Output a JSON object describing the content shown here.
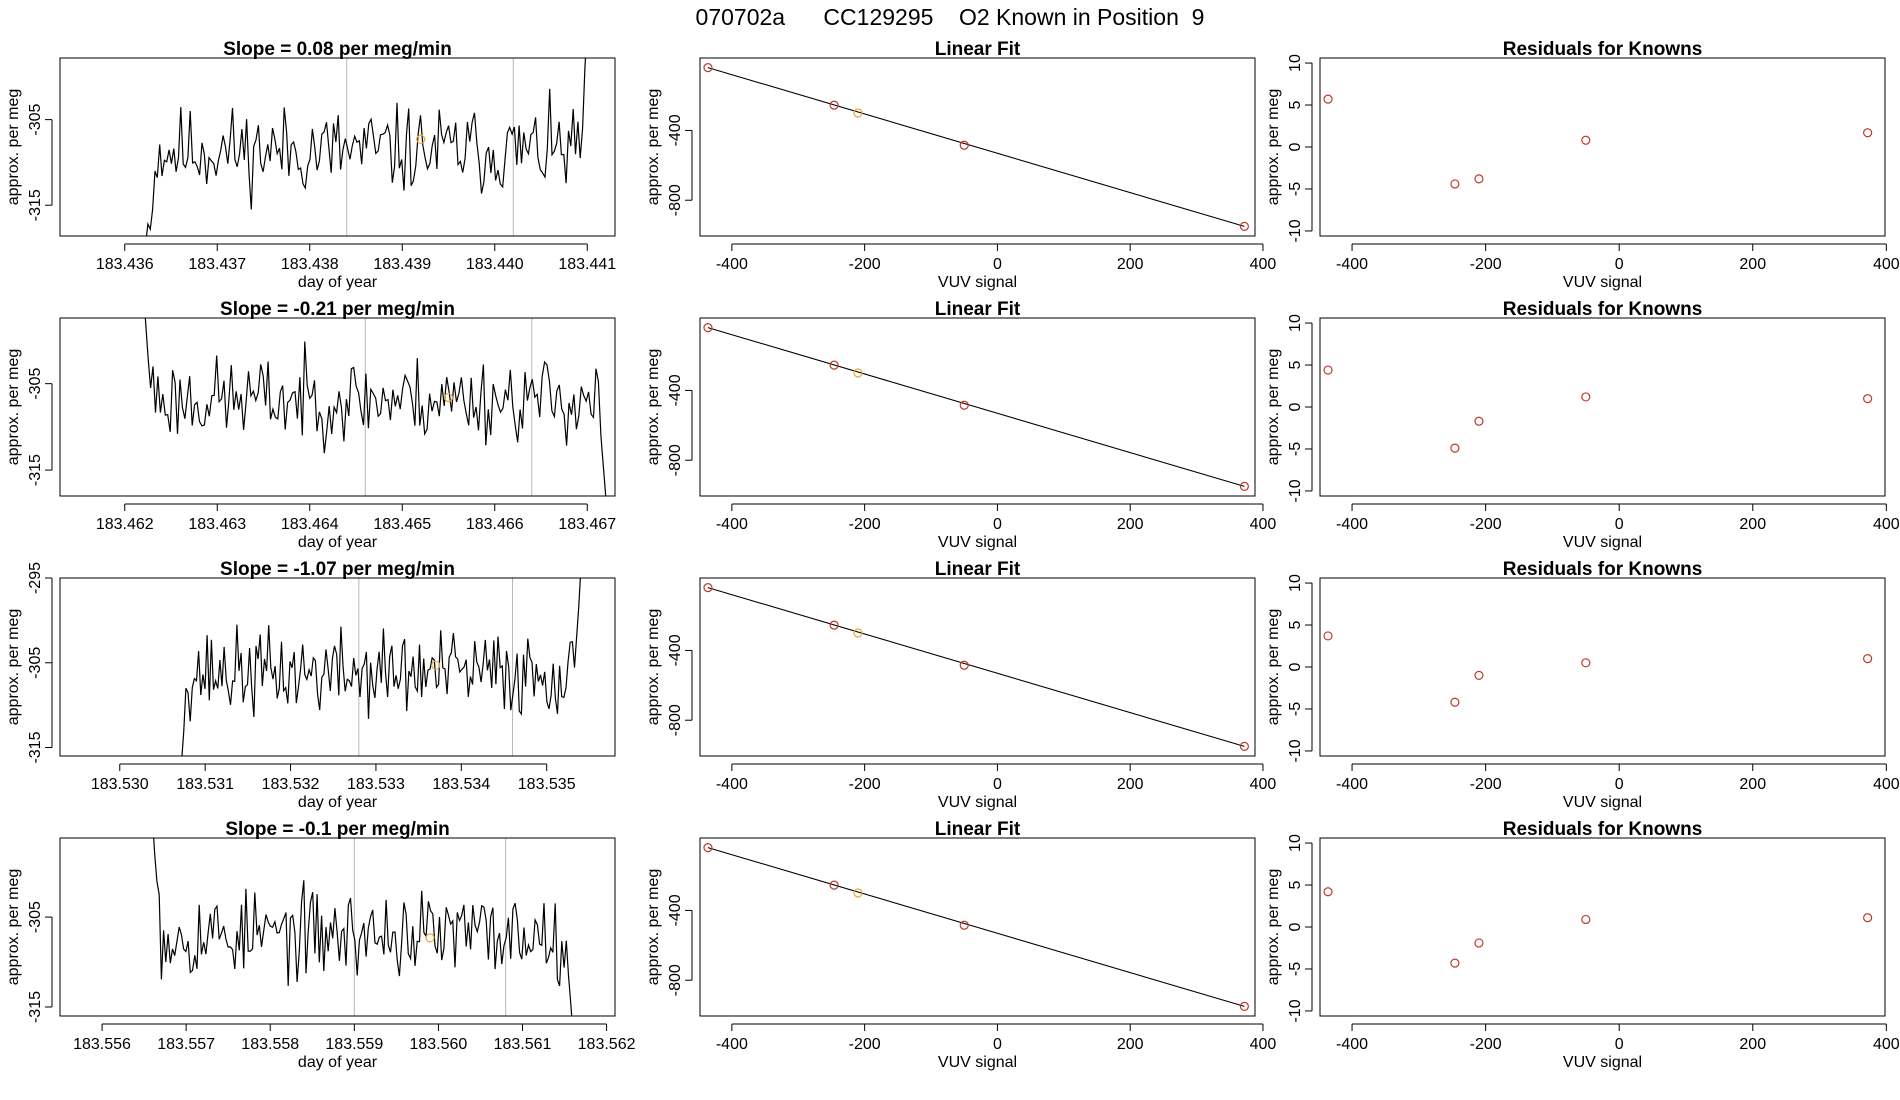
{
  "main_title": "070702a      CC129295    O2 Known in Position  9",
  "colors": {
    "trace": "#000000",
    "vline": "#b8b8b8",
    "point": "#c0392b",
    "highlight": "#e8a838",
    "fit": "#000000"
  },
  "chart_data": [
    {
      "type": "line",
      "row": 0,
      "kind": "timeseries",
      "title": "Slope =  0.08  per meg/min",
      "xlabel": "day of year",
      "ylabel": "approx. per meg",
      "xlim": [
        183.4353,
        183.4413
      ],
      "ylim": [
        -318.6,
        -297.8
      ],
      "x_ticks": [
        "183.436",
        "183.437",
        "183.438",
        "183.439",
        "183.440",
        "183.441"
      ],
      "y_ticks": [
        "-315",
        "-305"
      ],
      "vlines": [
        183.4384,
        183.4402
      ],
      "trace_start": 183.4362,
      "trace_end": 183.441,
      "baseline": -308.6,
      "noise_amp": 4.2,
      "seed": 11,
      "pre_values": [
        -330,
        -319.5,
        -317.2,
        -317.8,
        -315.5,
        -311.0
      ],
      "post_values": [
        -309.5,
        -306.0,
        -299.0,
        -294.0
      ],
      "highlight_point": [
        183.4392,
        -307.3
      ]
    },
    {
      "type": "scatter",
      "row": 0,
      "kind": "fit",
      "title": "Linear Fit",
      "xlabel": "VUV signal",
      "ylabel": "approx. per meg",
      "xlim": [
        -448,
        388
      ],
      "ylim": [
        -1005,
        15
      ],
      "x_ticks": [
        "-400",
        "-200",
        "0",
        "200",
        "400"
      ],
      "y_ticks": [
        "-400",
        "-800"
      ],
      "points": [
        [
          -436,
          -40
        ],
        [
          -246,
          -255
        ],
        [
          -210,
          -300
        ],
        [
          -50,
          -485
        ],
        [
          372,
          -950
        ]
      ],
      "highlight_index": 2,
      "fit_line": [
        [
          -436,
          -40
        ],
        [
          372,
          -950
        ]
      ]
    },
    {
      "type": "scatter",
      "row": 0,
      "kind": "residuals",
      "title": "Residuals for Knowns",
      "xlabel": "VUV signal",
      "ylabel": "approx. per meg",
      "xlim": [
        -448,
        398
      ],
      "ylim": [
        -10.6,
        10.6
      ],
      "x_ticks": [
        "-400",
        "-200",
        "0",
        "200",
        "400"
      ],
      "y_ticks": [
        "-10",
        "-5",
        "0",
        "5",
        "10"
      ],
      "points": [
        [
          -436,
          5.7
        ],
        [
          -246,
          -4.4
        ],
        [
          -210,
          -3.8
        ],
        [
          -50,
          0.8
        ],
        [
          372,
          1.7
        ]
      ]
    },
    {
      "type": "line",
      "row": 1,
      "kind": "timeseries",
      "title": "Slope =  -0.21  per meg/min",
      "xlabel": "day of year",
      "ylabel": "approx. per meg",
      "xlim": [
        183.4613,
        183.4673
      ],
      "ylim": [
        -318.0,
        -297.4
      ],
      "x_ticks": [
        "183.462",
        "183.463",
        "183.464",
        "183.465",
        "183.466",
        "183.467"
      ],
      "y_ticks": [
        "-315",
        "-305"
      ],
      "vlines": [
        183.4646,
        183.4664
      ],
      "trace_start": 183.4622,
      "trace_end": 183.4672,
      "baseline": -306.8,
      "noise_amp": 4.0,
      "seed": 23,
      "pre_values": [
        -294.0,
        -298.0,
        -302.0,
        -305.5,
        -303.0
      ],
      "post_values": [
        -311.0,
        -314.5,
        -318.0
      ],
      "highlight_point": [
        183.4655,
        -306.6
      ]
    },
    {
      "type": "scatter",
      "row": 1,
      "kind": "fit",
      "title": "Linear Fit",
      "xlabel": "VUV signal",
      "ylabel": "approx. per meg",
      "xlim": [
        -448,
        388
      ],
      "ylim": [
        -1005,
        15
      ],
      "x_ticks": [
        "-400",
        "-200",
        "0",
        "200",
        "400"
      ],
      "y_ticks": [
        "-400",
        "-800"
      ],
      "points": [
        [
          -436,
          -40
        ],
        [
          -246,
          -255
        ],
        [
          -210,
          -300
        ],
        [
          -50,
          -485
        ],
        [
          372,
          -950
        ]
      ],
      "highlight_index": 2,
      "fit_line": [
        [
          -436,
          -40
        ],
        [
          372,
          -950
        ]
      ]
    },
    {
      "type": "scatter",
      "row": 1,
      "kind": "residuals",
      "title": "Residuals for Knowns",
      "xlabel": "VUV signal",
      "ylabel": "approx. per meg",
      "xlim": [
        -448,
        398
      ],
      "ylim": [
        -10.6,
        10.6
      ],
      "x_ticks": [
        "-400",
        "-200",
        "0",
        "200",
        "400"
      ],
      "y_ticks": [
        "-10",
        "-5",
        "0",
        "5",
        "10"
      ],
      "points": [
        [
          -436,
          4.4
        ],
        [
          -246,
          -4.9
        ],
        [
          -210,
          -1.7
        ],
        [
          -50,
          1.2
        ],
        [
          372,
          1.0
        ]
      ]
    },
    {
      "type": "line",
      "row": 2,
      "kind": "timeseries",
      "title": "Slope =  -1.07  per meg/min",
      "xlabel": "day of year",
      "ylabel": "approx. per meg",
      "xlim": [
        183.5293,
        183.5358
      ],
      "ylim": [
        -316.0,
        -295.0
      ],
      "x_ticks": [
        "183.530",
        "183.531",
        "183.532",
        "183.533",
        "183.534",
        "183.535"
      ],
      "y_ticks": [
        "-315",
        "-305",
        "-295"
      ],
      "vlines": [
        183.5328,
        183.5346
      ],
      "trace_start": 183.5307,
      "trace_end": 183.5354,
      "baseline": -306.2,
      "noise_amp": 4.2,
      "seed": 37,
      "pre_values": [
        -322.0,
        -316.5,
        -313.0,
        -308.0
      ],
      "post_values": [
        -302.0,
        -298.5,
        -294.0
      ],
      "highlight_point": [
        183.5337,
        -305.3
      ]
    },
    {
      "type": "scatter",
      "row": 2,
      "kind": "fit",
      "title": "Linear Fit",
      "xlabel": "VUV signal",
      "ylabel": "approx. per meg",
      "xlim": [
        -448,
        388
      ],
      "ylim": [
        -1005,
        15
      ],
      "x_ticks": [
        "-400",
        "-200",
        "0",
        "200",
        "400"
      ],
      "y_ticks": [
        "-400",
        "-800"
      ],
      "points": [
        [
          -436,
          -40
        ],
        [
          -246,
          -255
        ],
        [
          -210,
          -300
        ],
        [
          -50,
          -485
        ],
        [
          372,
          -950
        ]
      ],
      "highlight_index": 2,
      "fit_line": [
        [
          -436,
          -40
        ],
        [
          372,
          -950
        ]
      ]
    },
    {
      "type": "scatter",
      "row": 2,
      "kind": "residuals",
      "title": "Residuals for Knowns",
      "xlabel": "VUV signal",
      "ylabel": "approx. per meg",
      "xlim": [
        -448,
        398
      ],
      "ylim": [
        -10.6,
        10.6
      ],
      "x_ticks": [
        "-400",
        "-200",
        "0",
        "200",
        "400"
      ],
      "y_ticks": [
        "-10",
        "-5",
        "0",
        "5",
        "10"
      ],
      "points": [
        [
          -436,
          3.7
        ],
        [
          -246,
          -4.2
        ],
        [
          -210,
          -1.0
        ],
        [
          -50,
          0.5
        ],
        [
          372,
          1.0
        ]
      ]
    },
    {
      "type": "line",
      "row": 3,
      "kind": "timeseries",
      "title": "Slope =  -0.1  per meg/min",
      "xlabel": "day of year",
      "ylabel": "approx. per meg",
      "xlim": [
        183.5555,
        183.5621
      ],
      "ylim": [
        -316.0,
        -296.2
      ],
      "x_ticks": [
        "183.556",
        "183.557",
        "183.558",
        "183.559",
        "183.560",
        "183.561",
        "183.562"
      ],
      "y_ticks": [
        "-315",
        "-305"
      ],
      "vlines": [
        183.559,
        183.5608
      ],
      "trace_start": 183.5566,
      "trace_end": 183.5616,
      "baseline": -306.9,
      "noise_amp": 4.0,
      "seed": 53,
      "pre_values": [
        -294.0,
        -298.0,
        -301.0,
        -302.5
      ],
      "post_values": [
        -311.5,
        -314.5,
        -318.0
      ],
      "highlight_point": [
        183.5599,
        -307.3
      ]
    },
    {
      "type": "scatter",
      "row": 3,
      "kind": "fit",
      "title": "Linear Fit",
      "xlabel": "VUV signal",
      "ylabel": "approx. per meg",
      "xlim": [
        -448,
        388
      ],
      "ylim": [
        -1005,
        15
      ],
      "x_ticks": [
        "-400",
        "-200",
        "0",
        "200",
        "400"
      ],
      "y_ticks": [
        "-400",
        "-800"
      ],
      "points": [
        [
          -436,
          -40
        ],
        [
          -246,
          -255
        ],
        [
          -210,
          -300
        ],
        [
          -50,
          -485
        ],
        [
          372,
          -950
        ]
      ],
      "highlight_index": 2,
      "fit_line": [
        [
          -436,
          -40
        ],
        [
          372,
          -950
        ]
      ]
    },
    {
      "type": "scatter",
      "row": 3,
      "kind": "residuals",
      "title": "Residuals for Knowns",
      "xlabel": "VUV signal",
      "ylabel": "approx. per meg",
      "xlim": [
        -448,
        398
      ],
      "ylim": [
        -10.6,
        10.6
      ],
      "x_ticks": [
        "-400",
        "-200",
        "0",
        "200",
        "400"
      ],
      "y_ticks": [
        "-10",
        "-5",
        "0",
        "5",
        "10"
      ],
      "points": [
        [
          -436,
          4.2
        ],
        [
          -246,
          -4.3
        ],
        [
          -210,
          -1.9
        ],
        [
          -50,
          0.9
        ],
        [
          372,
          1.1
        ]
      ]
    }
  ]
}
